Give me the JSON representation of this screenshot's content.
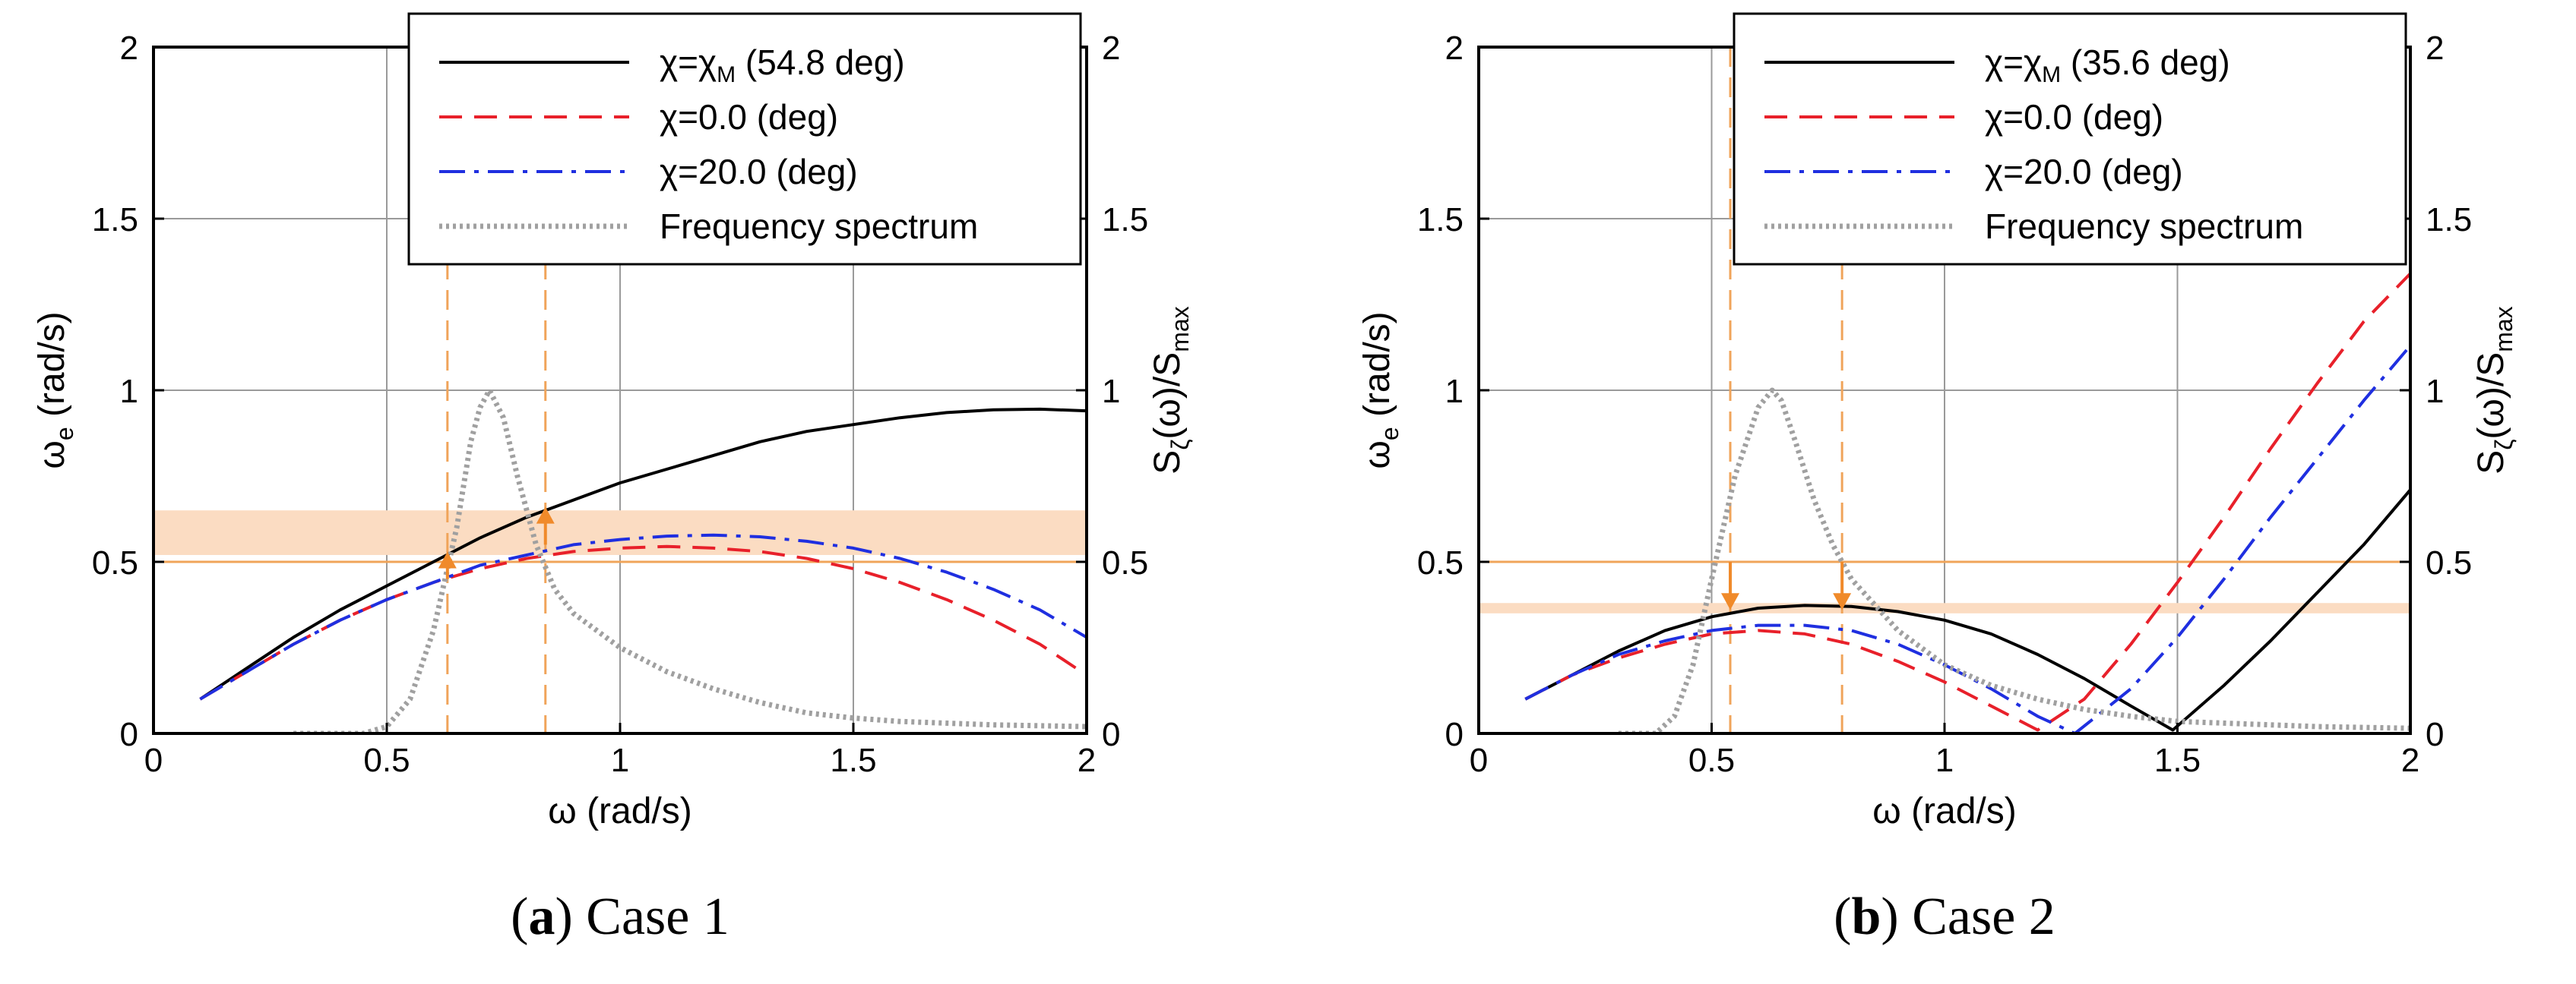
{
  "chart_data": [
    {
      "type": "line",
      "caption": {
        "letter": "a",
        "text": "Case 1"
      },
      "xlabel_sym": "ω",
      "xlabel_unit": " (rad/s)",
      "ylabel_left_sym": "ω",
      "ylabel_left_sub": "e",
      "ylabel_left_unit": " (rad/s)",
      "ylabel_right": {
        "p1": "S",
        "sub1": "ζ",
        "p2": "(ω)/S",
        "sub2": "max"
      },
      "xlim": [
        0,
        2
      ],
      "ylim": [
        0,
        2
      ],
      "xticks": [
        "0",
        "0.5",
        "1",
        "1.5",
        "2"
      ],
      "yticks": [
        "0",
        "0.5",
        "1",
        "1.5",
        "2"
      ],
      "legend": [
        {
          "pre": "χ=χ",
          "sub": "M",
          "post": " (54.8 deg)",
          "color": "#000000",
          "style": "solid"
        },
        {
          "pre": "χ=0.0 (deg)",
          "sub": "",
          "post": "",
          "color": "#e8202a",
          "style": "dash"
        },
        {
          "pre": "χ=20.0 (deg)",
          "sub": "",
          "post": "",
          "color": "#1f2fe0",
          "style": "dashdot"
        },
        {
          "pre": "Frequency spectrum",
          "sub": "",
          "post": "",
          "color": "#a0a0a0",
          "style": "dot"
        }
      ],
      "band": {
        "y0": 0.52,
        "y1": 0.65,
        "color": "#fbdcc2"
      },
      "hline": 0.5,
      "vlines": [
        0.63,
        0.84
      ],
      "arrows": [
        {
          "x": 0.63,
          "y0": 0.45,
          "y1": 0.53
        },
        {
          "x": 0.84,
          "y0": 0.55,
          "y1": 0.66
        }
      ],
      "series": [
        {
          "name": "χ=χM (54.8 deg)",
          "color": "#000000",
          "style": "solid",
          "x": [
            0.1,
            0.2,
            0.3,
            0.4,
            0.5,
            0.6,
            0.7,
            0.8,
            0.9,
            1.0,
            1.1,
            1.2,
            1.3,
            1.4,
            1.5,
            1.6,
            1.7,
            1.8,
            1.9,
            2.0
          ],
          "y": [
            0.1,
            0.19,
            0.28,
            0.36,
            0.43,
            0.5,
            0.57,
            0.63,
            0.68,
            0.73,
            0.77,
            0.81,
            0.85,
            0.88,
            0.9,
            0.92,
            0.935,
            0.943,
            0.945,
            0.94
          ]
        },
        {
          "name": "χ=0.0 (deg)",
          "color": "#e8202a",
          "style": "dash",
          "x": [
            0.1,
            0.2,
            0.3,
            0.4,
            0.5,
            0.6,
            0.7,
            0.8,
            0.9,
            1.0,
            1.1,
            1.2,
            1.3,
            1.4,
            1.5,
            1.6,
            1.7,
            1.8,
            1.9,
            2.0
          ],
          "y": [
            0.1,
            0.18,
            0.26,
            0.33,
            0.39,
            0.44,
            0.48,
            0.51,
            0.53,
            0.54,
            0.545,
            0.54,
            0.53,
            0.51,
            0.48,
            0.44,
            0.39,
            0.33,
            0.26,
            0.17
          ]
        },
        {
          "name": "χ=20.0 (deg)",
          "color": "#1f2fe0",
          "style": "dashdot",
          "x": [
            0.1,
            0.2,
            0.3,
            0.4,
            0.5,
            0.6,
            0.7,
            0.8,
            0.9,
            1.0,
            1.1,
            1.2,
            1.3,
            1.4,
            1.5,
            1.6,
            1.7,
            1.8,
            1.9,
            2.0
          ],
          "y": [
            0.1,
            0.18,
            0.26,
            0.33,
            0.39,
            0.44,
            0.49,
            0.52,
            0.55,
            0.565,
            0.575,
            0.578,
            0.573,
            0.56,
            0.54,
            0.51,
            0.47,
            0.42,
            0.36,
            0.28
          ]
        },
        {
          "name": "Frequency spectrum",
          "color": "#a0a0a0",
          "style": "dot",
          "x": [
            0.3,
            0.45,
            0.5,
            0.55,
            0.6,
            0.65,
            0.68,
            0.7,
            0.72,
            0.75,
            0.78,
            0.82,
            0.86,
            0.9,
            1.0,
            1.1,
            1.2,
            1.3,
            1.4,
            1.5,
            1.6,
            1.8,
            2.0
          ],
          "y": [
            0.0,
            0.0,
            0.02,
            0.1,
            0.3,
            0.6,
            0.85,
            0.95,
            1.0,
            0.92,
            0.75,
            0.55,
            0.42,
            0.35,
            0.25,
            0.18,
            0.13,
            0.09,
            0.06,
            0.045,
            0.035,
            0.025,
            0.02
          ]
        }
      ]
    },
    {
      "type": "line",
      "caption": {
        "letter": "b",
        "text": "Case 2"
      },
      "xlabel_sym": "ω",
      "xlabel_unit": " (rad/s)",
      "ylabel_left_sym": "ω",
      "ylabel_left_sub": "e",
      "ylabel_left_unit": " (rad/s)",
      "ylabel_right": {
        "p1": "S",
        "sub1": "ζ",
        "p2": "(ω)/S",
        "sub2": "max"
      },
      "xlim": [
        0,
        2
      ],
      "ylim": [
        0,
        2
      ],
      "xticks": [
        "0",
        "0.5",
        "1",
        "1.5",
        "2"
      ],
      "yticks": [
        "0",
        "0.5",
        "1",
        "1.5",
        "2"
      ],
      "legend": [
        {
          "pre": "χ=χ",
          "sub": "M",
          "post": " (35.6 deg)",
          "color": "#000000",
          "style": "solid"
        },
        {
          "pre": "χ=0.0 (deg)",
          "sub": "",
          "post": "",
          "color": "#e8202a",
          "style": "dash"
        },
        {
          "pre": "χ=20.0 (deg)",
          "sub": "",
          "post": "",
          "color": "#1f2fe0",
          "style": "dashdot"
        },
        {
          "pre": "Frequency spectrum",
          "sub": "",
          "post": "",
          "color": "#a0a0a0",
          "style": "dot"
        }
      ],
      "band": {
        "y0": 0.35,
        "y1": 0.38,
        "color": "#fbdcc2"
      },
      "hline": 0.5,
      "vlines": [
        0.54,
        0.78
      ],
      "arrows": [
        {
          "x": 0.54,
          "y0": 0.5,
          "y1": 0.36
        },
        {
          "x": 0.78,
          "y0": 0.5,
          "y1": 0.36
        }
      ],
      "series": [
        {
          "name": "χ=χM (35.6 deg)",
          "color": "#000000",
          "style": "solid",
          "x": [
            0.1,
            0.2,
            0.3,
            0.4,
            0.5,
            0.6,
            0.7,
            0.8,
            0.9,
            1.0,
            1.1,
            1.2,
            1.3,
            1.4,
            1.49,
            1.6,
            1.7,
            1.8,
            1.9,
            2.0
          ],
          "y": [
            0.1,
            0.17,
            0.24,
            0.3,
            0.34,
            0.365,
            0.373,
            0.37,
            0.355,
            0.33,
            0.29,
            0.23,
            0.16,
            0.08,
            0.01,
            0.14,
            0.27,
            0.41,
            0.55,
            0.71
          ]
        },
        {
          "name": "χ=0.0 (deg)",
          "color": "#e8202a",
          "style": "dash",
          "x": [
            0.1,
            0.2,
            0.3,
            0.4,
            0.5,
            0.6,
            0.7,
            0.8,
            0.9,
            1.0,
            1.1,
            1.2,
            1.3,
            1.4,
            1.5,
            1.6,
            1.7,
            1.8,
            1.9,
            2.0
          ],
          "y": [
            0.1,
            0.17,
            0.22,
            0.26,
            0.29,
            0.3,
            0.29,
            0.26,
            0.21,
            0.15,
            0.08,
            0.01,
            0.1,
            0.26,
            0.44,
            0.63,
            0.83,
            1.02,
            1.2,
            1.34
          ]
        },
        {
          "name": "χ=20.0 (deg)",
          "color": "#1f2fe0",
          "style": "dashdot",
          "x": [
            0.1,
            0.2,
            0.3,
            0.4,
            0.5,
            0.6,
            0.7,
            0.8,
            0.9,
            1.0,
            1.1,
            1.2,
            1.28,
            1.4,
            1.5,
            1.6,
            1.7,
            1.8,
            1.9,
            2.0
          ],
          "y": [
            0.1,
            0.17,
            0.23,
            0.27,
            0.3,
            0.315,
            0.315,
            0.3,
            0.26,
            0.2,
            0.13,
            0.05,
            0.0,
            0.13,
            0.28,
            0.45,
            0.63,
            0.8,
            0.97,
            1.13
          ]
        },
        {
          "name": "Frequency spectrum",
          "color": "#a0a0a0",
          "style": "dot",
          "x": [
            0.3,
            0.38,
            0.42,
            0.46,
            0.5,
            0.55,
            0.6,
            0.63,
            0.65,
            0.68,
            0.72,
            0.76,
            0.8,
            0.9,
            1.0,
            1.1,
            1.2,
            1.3,
            1.4,
            1.5,
            1.6,
            1.8,
            2.0
          ],
          "y": [
            0.0,
            0.0,
            0.05,
            0.2,
            0.45,
            0.75,
            0.95,
            1.0,
            0.97,
            0.85,
            0.68,
            0.55,
            0.45,
            0.3,
            0.2,
            0.14,
            0.1,
            0.07,
            0.05,
            0.035,
            0.03,
            0.02,
            0.015
          ]
        }
      ]
    }
  ]
}
